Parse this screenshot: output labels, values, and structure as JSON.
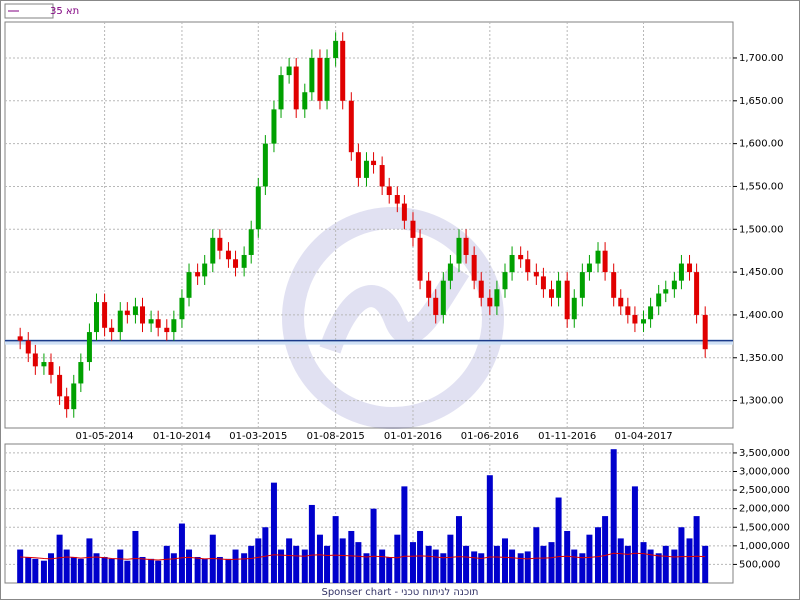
{
  "chart_data": {
    "type": "candlestick",
    "title": "תא 35",
    "footer": "Sponser chart - תוכנה לניתוח טכני",
    "up_color": "#00a000",
    "down_color": "#e00000",
    "volume_color": "#0000cc",
    "ma_color": "#e00000",
    "reference_color": "#1a3a8a",
    "reference_line": 1370,
    "grid": true,
    "x": [
      "2013-11-15",
      "2013-12-01",
      "2013-12-15",
      "2014-01-01",
      "2014-01-15",
      "2014-02-01",
      "2014-02-15",
      "2014-03-01",
      "2014-03-15",
      "2014-04-01",
      "2014-04-15",
      "2014-05-01",
      "2014-05-15",
      "2014-06-01",
      "2014-06-15",
      "2014-07-01",
      "2014-07-15",
      "2014-08-01",
      "2014-08-15",
      "2014-09-01",
      "2014-09-15",
      "2014-10-01",
      "2014-10-15",
      "2014-11-01",
      "2014-11-15",
      "2014-12-01",
      "2014-12-15",
      "2015-01-01",
      "2015-01-15",
      "2015-02-01",
      "2015-02-15",
      "2015-03-01",
      "2015-03-15",
      "2015-04-01",
      "2015-04-15",
      "2015-05-01",
      "2015-05-15",
      "2015-06-01",
      "2015-06-15",
      "2015-07-01",
      "2015-07-15",
      "2015-08-01",
      "2015-08-15",
      "2015-09-01",
      "2015-09-15",
      "2015-10-01",
      "2015-10-15",
      "2015-11-01",
      "2015-11-15",
      "2015-12-01",
      "2015-12-15",
      "2016-01-01",
      "2016-01-15",
      "2016-02-01",
      "2016-02-15",
      "2016-03-01",
      "2016-03-15",
      "2016-04-01",
      "2016-04-15",
      "2016-05-01",
      "2016-05-15",
      "2016-06-01",
      "2016-06-15",
      "2016-07-01",
      "2016-07-15",
      "2016-08-01",
      "2016-08-15",
      "2016-09-01",
      "2016-09-15",
      "2016-10-01",
      "2016-10-15",
      "2016-11-01",
      "2016-11-15",
      "2016-12-01",
      "2016-12-15",
      "2017-01-01",
      "2017-01-15",
      "2017-02-01",
      "2017-02-15",
      "2017-03-01",
      "2017-03-15",
      "2017-04-01",
      "2017-04-15",
      "2017-05-01",
      "2017-05-15",
      "2017-06-01",
      "2017-06-15",
      "2017-07-01",
      "2017-07-15",
      "2017-08-01"
    ],
    "open": [
      1375,
      1370,
      1355,
      1340,
      1345,
      1330,
      1305,
      1290,
      1320,
      1345,
      1380,
      1415,
      1385,
      1380,
      1405,
      1400,
      1410,
      1390,
      1395,
      1385,
      1380,
      1395,
      1420,
      1450,
      1445,
      1460,
      1490,
      1475,
      1465,
      1455,
      1470,
      1500,
      1550,
      1600,
      1640,
      1680,
      1690,
      1640,
      1660,
      1700,
      1650,
      1700,
      1720,
      1650,
      1590,
      1560,
      1580,
      1575,
      1550,
      1540,
      1530,
      1510,
      1490,
      1440,
      1420,
      1400,
      1440,
      1460,
      1490,
      1470,
      1440,
      1420,
      1410,
      1430,
      1450,
      1470,
      1465,
      1450,
      1445,
      1430,
      1420,
      1440,
      1395,
      1420,
      1450,
      1460,
      1475,
      1450,
      1420,
      1410,
      1400,
      1390,
      1395,
      1410,
      1425,
      1430,
      1440,
      1460,
      1450,
      1400
    ],
    "high": [
      1385,
      1380,
      1365,
      1355,
      1355,
      1340,
      1315,
      1330,
      1355,
      1390,
      1425,
      1425,
      1395,
      1415,
      1415,
      1420,
      1420,
      1405,
      1405,
      1395,
      1405,
      1430,
      1460,
      1460,
      1470,
      1500,
      1500,
      1485,
      1475,
      1480,
      1510,
      1560,
      1610,
      1650,
      1690,
      1700,
      1700,
      1670,
      1710,
      1710,
      1710,
      1730,
      1730,
      1660,
      1600,
      1590,
      1590,
      1585,
      1560,
      1550,
      1540,
      1520,
      1500,
      1450,
      1430,
      1450,
      1470,
      1500,
      1500,
      1480,
      1450,
      1430,
      1440,
      1460,
      1480,
      1480,
      1475,
      1460,
      1455,
      1440,
      1450,
      1450,
      1430,
      1460,
      1470,
      1485,
      1485,
      1460,
      1430,
      1420,
      1410,
      1405,
      1420,
      1435,
      1440,
      1450,
      1470,
      1470,
      1460,
      1410
    ],
    "low": [
      1360,
      1345,
      1330,
      1330,
      1320,
      1295,
      1280,
      1280,
      1310,
      1335,
      1370,
      1375,
      1370,
      1370,
      1390,
      1390,
      1380,
      1380,
      1375,
      1370,
      1370,
      1385,
      1410,
      1435,
      1435,
      1450,
      1465,
      1455,
      1445,
      1445,
      1460,
      1490,
      1540,
      1590,
      1630,
      1670,
      1630,
      1630,
      1650,
      1640,
      1640,
      1690,
      1640,
      1580,
      1550,
      1550,
      1565,
      1540,
      1530,
      1520,
      1500,
      1480,
      1430,
      1410,
      1390,
      1390,
      1430,
      1450,
      1460,
      1430,
      1410,
      1400,
      1400,
      1420,
      1440,
      1455,
      1440,
      1435,
      1420,
      1410,
      1410,
      1385,
      1385,
      1410,
      1440,
      1450,
      1440,
      1410,
      1400,
      1390,
      1380,
      1380,
      1385,
      1400,
      1415,
      1420,
      1430,
      1440,
      1390,
      1350
    ],
    "close": [
      1370,
      1355,
      1340,
      1345,
      1330,
      1305,
      1290,
      1320,
      1345,
      1380,
      1415,
      1385,
      1380,
      1405,
      1400,
      1410,
      1390,
      1395,
      1385,
      1380,
      1395,
      1420,
      1450,
      1445,
      1460,
      1490,
      1475,
      1465,
      1455,
      1470,
      1500,
      1550,
      1600,
      1640,
      1680,
      1690,
      1640,
      1660,
      1700,
      1650,
      1700,
      1720,
      1650,
      1590,
      1560,
      1580,
      1575,
      1550,
      1540,
      1530,
      1510,
      1490,
      1440,
      1420,
      1400,
      1440,
      1460,
      1490,
      1470,
      1440,
      1420,
      1410,
      1430,
      1450,
      1470,
      1465,
      1450,
      1445,
      1430,
      1420,
      1440,
      1395,
      1420,
      1450,
      1460,
      1475,
      1450,
      1420,
      1410,
      1400,
      1390,
      1395,
      1410,
      1425,
      1430,
      1440,
      1460,
      1450,
      1400,
      1360
    ],
    "volume": [
      900000,
      700000,
      650000,
      600000,
      800000,
      1300000,
      900000,
      700000,
      650000,
      1200000,
      800000,
      700000,
      650000,
      900000,
      600000,
      1400000,
      700000,
      650000,
      600000,
      1000000,
      800000,
      1600000,
      900000,
      700000,
      650000,
      1300000,
      700000,
      650000,
      900000,
      800000,
      1000000,
      1200000,
      1500000,
      2700000,
      900000,
      1200000,
      1000000,
      900000,
      2100000,
      1300000,
      1000000,
      1800000,
      1200000,
      1400000,
      1100000,
      800000,
      2000000,
      900000,
      700000,
      1300000,
      2600000,
      1100000,
      1400000,
      1000000,
      900000,
      800000,
      1300000,
      1800000,
      1000000,
      850000,
      800000,
      2900000,
      1000000,
      1200000,
      900000,
      800000,
      850000,
      1500000,
      1000000,
      1100000,
      2300000,
      1400000,
      900000,
      800000,
      1300000,
      1500000,
      1800000,
      3600000,
      1200000,
      1000000,
      2600000,
      1100000,
      900000,
      800000,
      1000000,
      900000,
      1500000,
      1200000,
      1800000,
      1000000
    ],
    "volume_ma": [
      700000,
      690000,
      680000,
      660000,
      650000,
      680000,
      700000,
      690000,
      670000,
      690000,
      700000,
      680000,
      660000,
      650000,
      640000,
      660000,
      650000,
      630000,
      620000,
      640000,
      650000,
      680000,
      690000,
      670000,
      650000,
      660000,
      650000,
      630000,
      640000,
      650000,
      660000,
      690000,
      720000,
      760000,
      750000,
      740000,
      730000,
      720000,
      750000,
      760000,
      740000,
      750000,
      740000,
      730000,
      720000,
      700000,
      720000,
      710000,
      690000,
      680000,
      720000,
      720000,
      730000,
      720000,
      700000,
      680000,
      690000,
      710000,
      700000,
      680000,
      660000,
      700000,
      700000,
      690000,
      680000,
      660000,
      650000,
      670000,
      670000,
      680000,
      710000,
      720000,
      700000,
      680000,
      690000,
      710000,
      740000,
      800000,
      790000,
      770000,
      800000,
      790000,
      760000,
      730000,
      720000,
      700000,
      710000,
      710000,
      720000,
      710000
    ],
    "xlim": [
      "2013-10-16",
      "2017-09-25"
    ],
    "xticks": [
      {
        "value": "2014-05-01",
        "label": "01-05-2014"
      },
      {
        "value": "2014-10-01",
        "label": "01-10-2014"
      },
      {
        "value": "2015-03-01",
        "label": "01-03-2015"
      },
      {
        "value": "2015-08-01",
        "label": "01-08-2015"
      },
      {
        "value": "2016-01-01",
        "label": "01-01-2016"
      },
      {
        "value": "2016-06-01",
        "label": "01-06-2016"
      },
      {
        "value": "2016-11-01",
        "label": "01-11-2016"
      },
      {
        "value": "2017-04-01",
        "label": "01-04-2017"
      }
    ],
    "ylim": [
      1268,
      1742
    ],
    "yticks": [
      {
        "value": 1300,
        "label": "1,300.00"
      },
      {
        "value": 1350,
        "label": "1,350.00"
      },
      {
        "value": 1400,
        "label": "1,400.00"
      },
      {
        "value": 1450,
        "label": "1,450.00"
      },
      {
        "value": 1500,
        "label": "1,500.00"
      },
      {
        "value": 1550,
        "label": "1,550.00"
      },
      {
        "value": 1600,
        "label": "1,600.00"
      },
      {
        "value": 1650,
        "label": "1,650.00"
      },
      {
        "value": 1700,
        "label": "1,700.00"
      }
    ],
    "y2lim": [
      0,
      3740000
    ],
    "y2ticks": [
      {
        "value": 500000,
        "label": "500,000"
      },
      {
        "value": 1000000,
        "label": "1,000,000"
      },
      {
        "value": 1500000,
        "label": "1,500,000"
      },
      {
        "value": 2000000,
        "label": "2,000,000"
      },
      {
        "value": 2500000,
        "label": "2,500,000"
      },
      {
        "value": 3000000,
        "label": "3,000,000"
      },
      {
        "value": 3500000,
        "label": "3,500,000"
      }
    ]
  }
}
